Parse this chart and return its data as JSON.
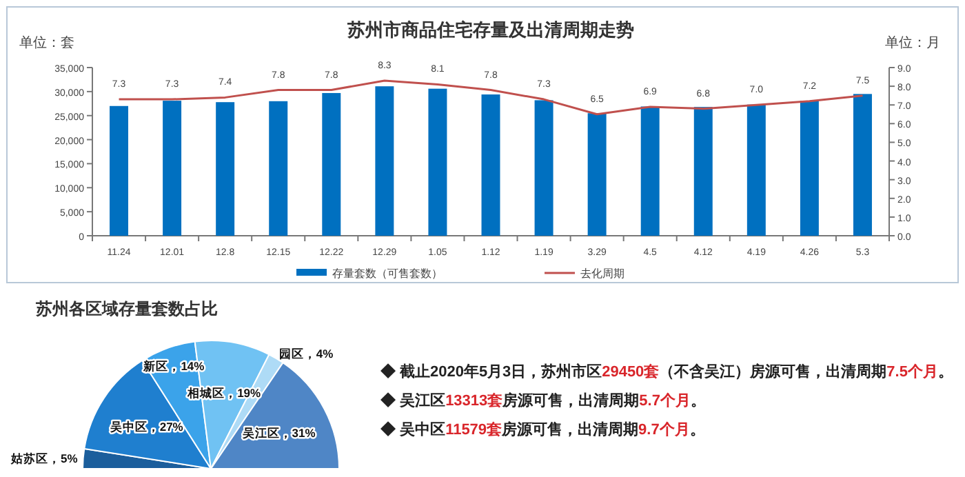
{
  "chart_data": [
    {
      "type": "bar",
      "title": "苏州市商品住宅存量及出清周期走势",
      "ylabel": "单位：套",
      "y2label": "单位：月",
      "categories": [
        "11.24",
        "12.01",
        "12.8",
        "12.15",
        "12.22",
        "12.29",
        "1.05",
        "1.12",
        "1.19",
        "3.29",
        "4.5",
        "4.12",
        "4.19",
        "4.26",
        "5.3"
      ],
      "series": [
        {
          "name": "存量套数（可售套数）",
          "color": "#0070c0",
          "values": [
            27000,
            28100,
            27800,
            28000,
            29700,
            31100,
            30600,
            29400,
            28200,
            25500,
            26900,
            26800,
            27300,
            28100,
            29500
          ]
        },
        {
          "name": "去化周期",
          "type": "line",
          "axis": "y2",
          "color": "#c0504d",
          "values": [
            7.3,
            7.3,
            7.4,
            7.8,
            7.8,
            8.3,
            8.1,
            7.8,
            7.3,
            6.5,
            6.9,
            6.8,
            7.0,
            7.2,
            7.5
          ],
          "value_labels": [
            "7.3",
            "7.3",
            "7.4",
            "7.8",
            "7.8",
            "8.3",
            "8.1",
            "7.8",
            "7.3",
            "6.5",
            "6.9",
            "6.8",
            "7.0",
            "7.2",
            "7.5"
          ]
        }
      ],
      "ylim": [
        0,
        35000
      ],
      "yticks": [
        0,
        {
          "value": 5000,
          "label": "5,000"
        },
        {
          "value": 10000,
          "label": "10,000"
        },
        {
          "value": 15000,
          "label": "15,000"
        },
        {
          "value": 20000,
          "label": "20,000"
        },
        {
          "value": 25000,
          "label": "25,000"
        },
        {
          "value": 30000,
          "label": "30,000"
        },
        {
          "value": 35000,
          "label": "35,000"
        }
      ],
      "y2lim": [
        0,
        9
      ],
      "y2ticks": [
        {
          "value": 0,
          "label": "0.0"
        },
        {
          "value": 1,
          "label": "1.0"
        },
        {
          "value": 2,
          "label": "2.0"
        },
        {
          "value": 3,
          "label": "3.0"
        },
        {
          "value": 4,
          "label": "4.0"
        },
        {
          "value": 5,
          "label": "5.0"
        },
        {
          "value": 6,
          "label": "6.0"
        },
        {
          "value": 7,
          "label": "7.0"
        },
        {
          "value": 8,
          "label": "8.0"
        },
        {
          "value": 9,
          "label": "9.0"
        }
      ],
      "legend": "bottom"
    },
    {
      "type": "pie",
      "title": "苏州各区域存量套数占比",
      "categories": [
        "姑苏区",
        "吴中区",
        "新区",
        "相城区",
        "园区",
        "吴江区"
      ],
      "values": [
        5,
        27,
        14,
        19,
        4,
        31
      ],
      "value_labels": [
        "5%",
        "27%",
        "14%",
        "19%",
        "4%",
        "31%"
      ],
      "colors": [
        "#1b5e9c",
        "#1f7fcf",
        "#3ba3ea",
        "#70c2f3",
        "#aedbf6",
        "#4f86c6"
      ]
    },
    {
      "type": "other",
      "annotations": [
        "◆ 截止2020年5月3日，苏州市区**29450套**（不含吴江）房源可售，出清周期**7.5个月**。",
        "◆ 吴江区**13313套**房源可售，出清周期**5.7个月**。",
        "◆ 吴中区**11579套**房源可售，出清周期**9.7个月**。"
      ]
    }
  ]
}
